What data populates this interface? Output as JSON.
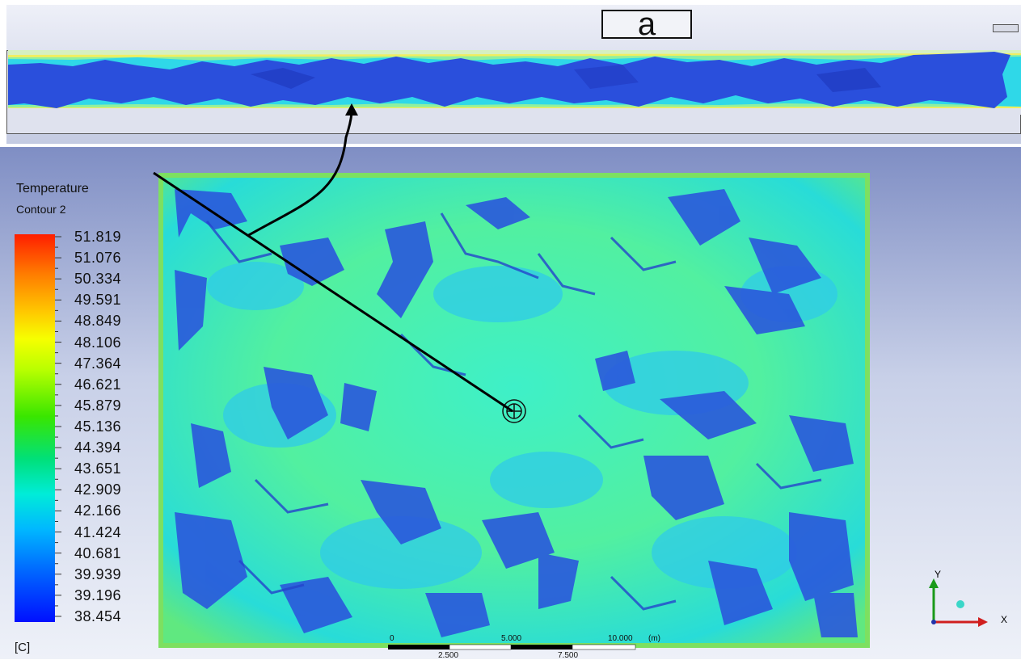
{
  "figure_label": "a",
  "legend": {
    "title": "Temperature",
    "subtitle": "Contour 2",
    "unit": "[C]",
    "values": [
      "51.819",
      "51.076",
      "50.334",
      "49.591",
      "48.849",
      "48.106",
      "47.364",
      "46.621",
      "45.879",
      "45.136",
      "44.394",
      "43.651",
      "42.909",
      "42.166",
      "41.424",
      "40.681",
      "39.939",
      "39.196",
      "38.454"
    ]
  },
  "scale_bar": {
    "top_labels": [
      "0",
      "5.000",
      "10.000",
      "(m)"
    ],
    "bottom_labels": [
      "2.500",
      "7.500"
    ]
  },
  "axis_triad": {
    "y_label": "Y",
    "x_label": "X",
    "y_color": "#1a9a1a",
    "x_color": "#d01e1e"
  },
  "colors": {
    "cold": "#1f3fd0",
    "mid": "#28e8a8",
    "hot": "#ff1e00"
  }
}
